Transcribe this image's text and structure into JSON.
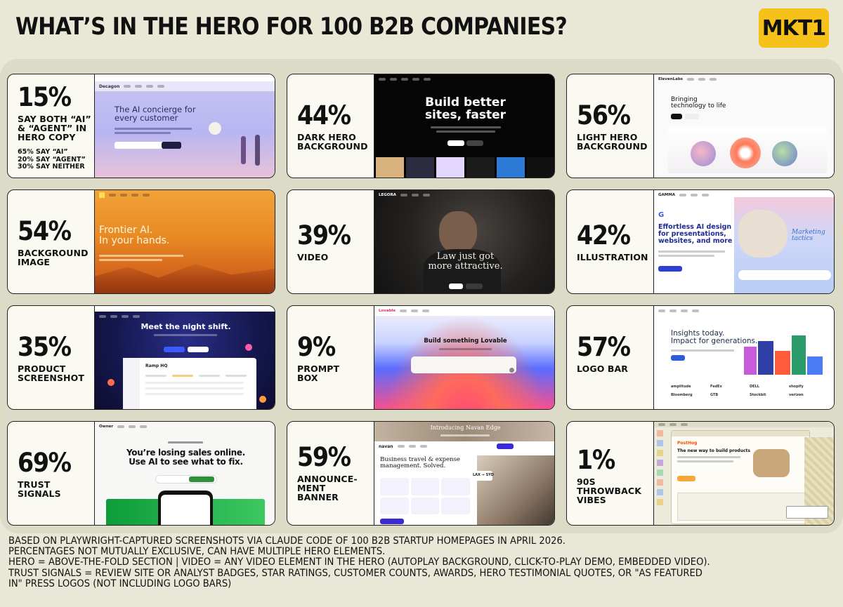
{
  "header": {
    "title": "WHAT’S IN THE HERO FOR 100 B2B COMPANIES?",
    "logo": "MKT1"
  },
  "cards": [
    {
      "pct": "15%",
      "label": "SAY BOTH “AI”\n& “AGENT” IN\nHERO COPY",
      "sub": "65% SAY “AI”\n20% SAY “AGENT”\n30% SAY NEITHER",
      "shot_headline": "The AI concierge for\nevery customer",
      "shot_brand": "Decagon"
    },
    {
      "pct": "44%",
      "label": "DARK HERO\nBACKGROUND",
      "shot_headline": "Build better\nsites, faster"
    },
    {
      "pct": "56%",
      "label": "LIGHT HERO\nBACKGROUND",
      "shot_headline": "Bringing\ntechnology to life",
      "shot_brand": "ElevenLabs"
    },
    {
      "pct": "54%",
      "label": "BACKGROUND\nIMAGE",
      "shot_headline": "Frontier AI.\nIn your hands."
    },
    {
      "pct": "39%",
      "label": "VIDEO",
      "shot_headline": "Law just got\nmore attractive.",
      "shot_brand": "LEGORA"
    },
    {
      "pct": "42%",
      "label": "ILLUSTRATION",
      "shot_headline": "Effortless AI design\nfor presentations,\nwebsites, and more",
      "shot_brand": "GAMMA",
      "shot_accent": "Marketing\ntactics"
    },
    {
      "pct": "35%",
      "label": "PRODUCT\nSCREENSHOT",
      "shot_headline": "Meet the night shift.",
      "shot_accent": "Ramp HQ"
    },
    {
      "pct": "9%",
      "label": "PROMPT\nBOX",
      "shot_headline": "Build something Lovable",
      "shot_brand": "Lovable"
    },
    {
      "pct": "57%",
      "label": "LOGO BAR",
      "shot_headline": "Insights today.\nImpact for generations.",
      "shot_logos": [
        "amplitude",
        "FedEx",
        "DELL",
        "shopify",
        "Bloomberg",
        "GTB",
        "Stockbit",
        "verizon"
      ]
    },
    {
      "pct": "69%",
      "label": "TRUST\nSIGNALS",
      "shot_headline": "You’re losing sales online.\nUse AI to see what to fix.",
      "shot_brand": "Owner"
    },
    {
      "pct": "59%",
      "label": "ANNOUNCE-\nMENT\nBANNER",
      "shot_headline": "Business travel & expense\nmanagement. Solved.",
      "shot_brand": "navan",
      "shot_accent": "Introducing Navan Edge"
    },
    {
      "pct": "1%",
      "label": "90s\nTHROWBACK\nVIBES",
      "shot_headline": "The new way to build products",
      "shot_brand": "PostHog"
    }
  ],
  "footnotes": [
    "BASED ON PLAYWRIGHT-CAPTURED SCREENSHOTS VIA CLAUDE CODE OF 100 B2B STARTUP HOMEPAGES IN APRIL 2026.",
    "PERCENTAGES NOT MUTUALLY EXCLUSIVE, CAN HAVE MULTIPLE HERO ELEMENTS.",
    "HERO = ABOVE-THE-FOLD SECTION | VIDEO = ANY VIDEO ELEMENT IN THE HERO (AUTOPLAY BACKGROUND, CLICK-TO-PLAY DEMO, EMBEDDED VIDEO).",
    "TRUST SIGNALS = REVIEW SITE OR ANALYST BADGES, STAR RATINGS, CUSTOMER COUNTS, AWARDS, HERO TESTIMONIAL QUOTES, OR \"AS FEATURED",
    "IN\" PRESS LOGOS (NOT INCLUDING LOGO BARS)"
  ],
  "colors": {
    "background": "#e9e7d6",
    "panel": "#dcdbc7",
    "brand_yellow": "#f6c21a"
  }
}
